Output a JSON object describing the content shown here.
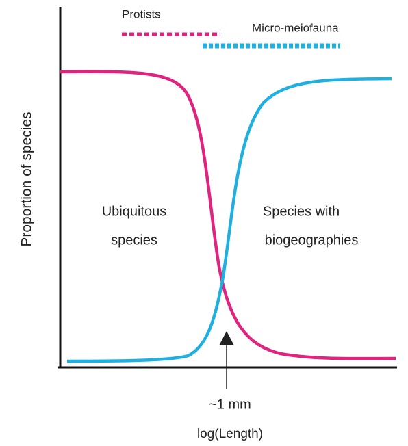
{
  "axis_labels": {
    "y": "Proportion of species",
    "x": "log(Length)"
  },
  "groups": {
    "protists": "Protists",
    "micro_meiofauna": "Micro-meiofauna"
  },
  "regions": {
    "ubiquitous": [
      "Ubiquitous",
      "species"
    ],
    "biogeographic": [
      "Species with",
      "biogeographies"
    ]
  },
  "marker": "~1 mm"
}
